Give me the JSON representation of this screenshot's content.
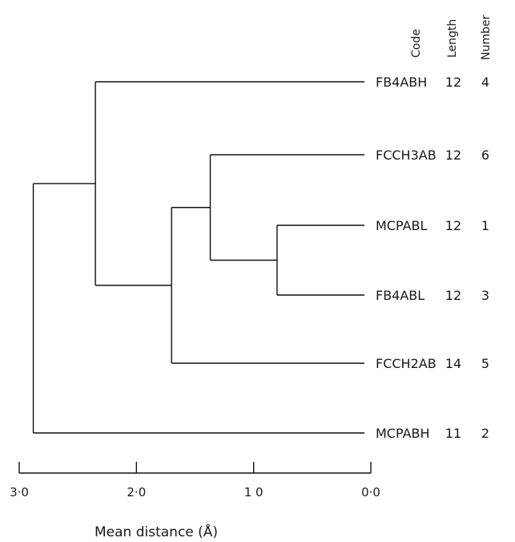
{
  "headers": {
    "code": "Code",
    "length": "Length",
    "number": "Number"
  },
  "leaves": [
    {
      "code": "FB4ABH",
      "length": "12",
      "number": "4"
    },
    {
      "code": "FCCH3AB",
      "length": "12",
      "number": "6"
    },
    {
      "code": "MCPABL",
      "length": "12",
      "number": "1"
    },
    {
      "code": "FB4ABL",
      "length": "12",
      "number": "3"
    },
    {
      "code": "FCCH2AB",
      "length": "14",
      "number": "5"
    },
    {
      "code": "MCPABH",
      "length": "11",
      "number": "2"
    }
  ],
  "merges": [
    {
      "a": "MCPABL",
      "b": "FB4ABL",
      "distance": 0.8
    },
    {
      "a": "FCCH3AB",
      "b": "MCPABL+FB4ABL",
      "distance": 1.37
    },
    {
      "a": "FCCH3AB+MCPABL+FB4ABL",
      "b": "FCCH2AB",
      "distance": 1.7
    },
    {
      "a": "FB4ABH",
      "b": "FCCH3AB+MCPABL+FB4ABL+FCCH2AB",
      "distance": 2.35
    },
    {
      "a": "FB4ABH+FCCH3AB+MCPABL+FB4ABL+FCCH2AB",
      "b": "MCPABH",
      "distance": 2.88
    }
  ],
  "axis": {
    "title": "Mean distance (Å)",
    "ticks": [
      {
        "value": 3.0,
        "label": "3·0"
      },
      {
        "value": 2.0,
        "label": "2·0"
      },
      {
        "value": 1.0,
        "label": "1 0"
      },
      {
        "value": 0.0,
        "label": "0·0"
      }
    ],
    "range": [
      3.0,
      0.0
    ]
  }
}
